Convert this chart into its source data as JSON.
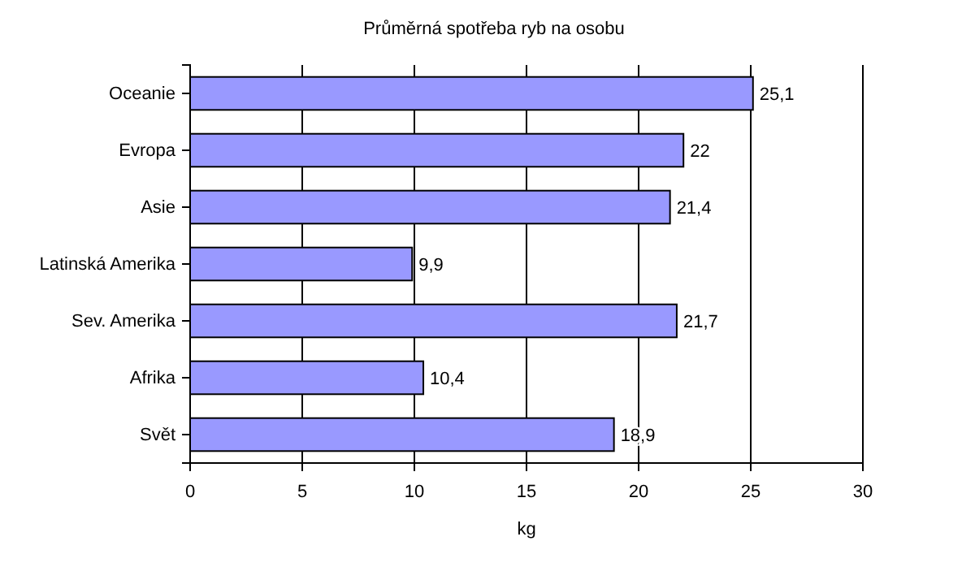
{
  "chart_data": {
    "type": "bar",
    "orientation": "horizontal",
    "title": "Průměrná spotřeba ryb na osobu",
    "xlabel": "kg",
    "categories": [
      "Oceanie",
      "Evropa",
      "Asie",
      "Latinská Amerika",
      "Sev. Amerika",
      "Afrika",
      "Svět"
    ],
    "values": [
      25.1,
      22,
      21.4,
      9.9,
      21.7,
      10.4,
      18.9
    ],
    "value_labels": [
      "25,1",
      "22",
      "21,4",
      "9,9",
      "21,7",
      "10,4",
      "18,9"
    ],
    "color": "#9999ff",
    "xlim": [
      0,
      30
    ],
    "xticks": [
      0,
      5,
      10,
      15,
      20,
      25,
      30
    ],
    "grid": "x"
  }
}
